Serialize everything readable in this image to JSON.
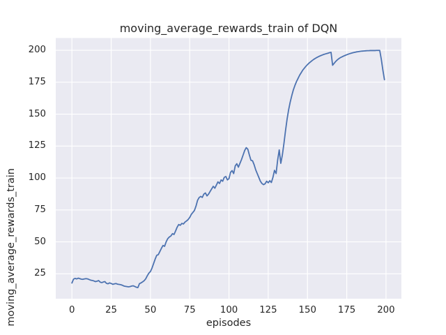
{
  "chart_data": {
    "type": "line",
    "title": "moving_average_rewards_train of DQN",
    "xlabel": "episodes",
    "ylabel": "moving_average_rewards_train",
    "x_ticks": [
      0,
      25,
      50,
      75,
      100,
      125,
      150,
      175,
      200
    ],
    "y_ticks": [
      25,
      50,
      75,
      100,
      125,
      150,
      175,
      200
    ],
    "xlim": [
      -10.3,
      209.8
    ],
    "ylim": [
      5.5,
      209.6
    ],
    "grid": true,
    "legend_position": "none",
    "colors": {
      "line": "#4C72B0",
      "axes_background": "#EAEAF2",
      "grid": "#FFFFFF",
      "figure_background": "#FFFFFF",
      "text": "#262626"
    },
    "series": [
      {
        "name": "moving_average_rewards_train",
        "x_start": 0,
        "x_step": 1,
        "values": [
          17.8,
          20.8,
          21.4,
          21.0,
          21.6,
          21.2,
          20.8,
          20.7,
          21.0,
          21.2,
          21.0,
          20.5,
          20.0,
          19.8,
          19.4,
          18.9,
          19.2,
          19.7,
          18.5,
          18.1,
          18.6,
          18.9,
          17.5,
          17.2,
          17.9,
          17.4,
          16.8,
          17.1,
          17.4,
          16.9,
          16.7,
          16.5,
          16.1,
          15.5,
          15.2,
          15.0,
          14.8,
          15.0,
          15.4,
          15.6,
          15.1,
          14.5,
          14.2,
          17.3,
          17.9,
          18.7,
          19.6,
          21.1,
          23.5,
          25.5,
          26.8,
          29.5,
          33.0,
          36.5,
          39.5,
          40.0,
          42.5,
          45.0,
          47.2,
          46.5,
          50.0,
          52.5,
          53.8,
          54.6,
          56.4,
          55.8,
          58.5,
          61.5,
          63.6,
          63.0,
          64.5,
          64.0,
          65.5,
          66.4,
          67.5,
          69.1,
          71.5,
          73.0,
          74.6,
          78.0,
          82.5,
          84.7,
          85.6,
          84.8,
          87.4,
          88.3,
          86.0,
          87.4,
          89.5,
          91.5,
          93.5,
          92.0,
          94.5,
          97.0,
          95.7,
          98.5,
          97.5,
          100.5,
          101.2,
          98.5,
          99.5,
          104.5,
          105.8,
          103.5,
          109.5,
          111.2,
          108.5,
          111.5,
          114.5,
          118.0,
          121.5,
          123.8,
          122.5,
          118.0,
          113.9,
          113.5,
          110.5,
          106.5,
          103.5,
          100.5,
          97.5,
          95.7,
          94.8,
          95.5,
          97.5,
          96.3,
          97.9,
          96.5,
          100.5,
          106.0,
          103.5,
          114.0,
          122.0,
          111.5,
          118.0,
          127.0,
          137.0,
          146.0,
          153.5,
          159.5,
          164.5,
          169.0,
          172.5,
          175.5,
          178.0,
          180.5,
          182.5,
          184.5,
          186.0,
          187.5,
          188.8,
          190.0,
          191.0,
          192.0,
          192.9,
          193.7,
          194.4,
          195.0,
          195.6,
          196.1,
          196.6,
          197.0,
          197.4,
          197.7,
          198.1,
          198.4,
          188.3,
          189.8,
          191.3,
          192.5,
          193.5,
          194.3,
          194.9,
          195.5,
          196.0,
          196.5,
          197.0,
          197.4,
          197.8,
          198.1,
          198.4,
          198.7,
          198.9,
          199.1,
          199.3,
          199.4,
          199.5,
          199.6,
          199.7,
          199.7,
          199.8,
          199.8,
          199.8,
          199.8,
          199.9,
          199.9,
          199.9,
          193.0,
          184.5,
          177.0
        ]
      }
    ]
  }
}
